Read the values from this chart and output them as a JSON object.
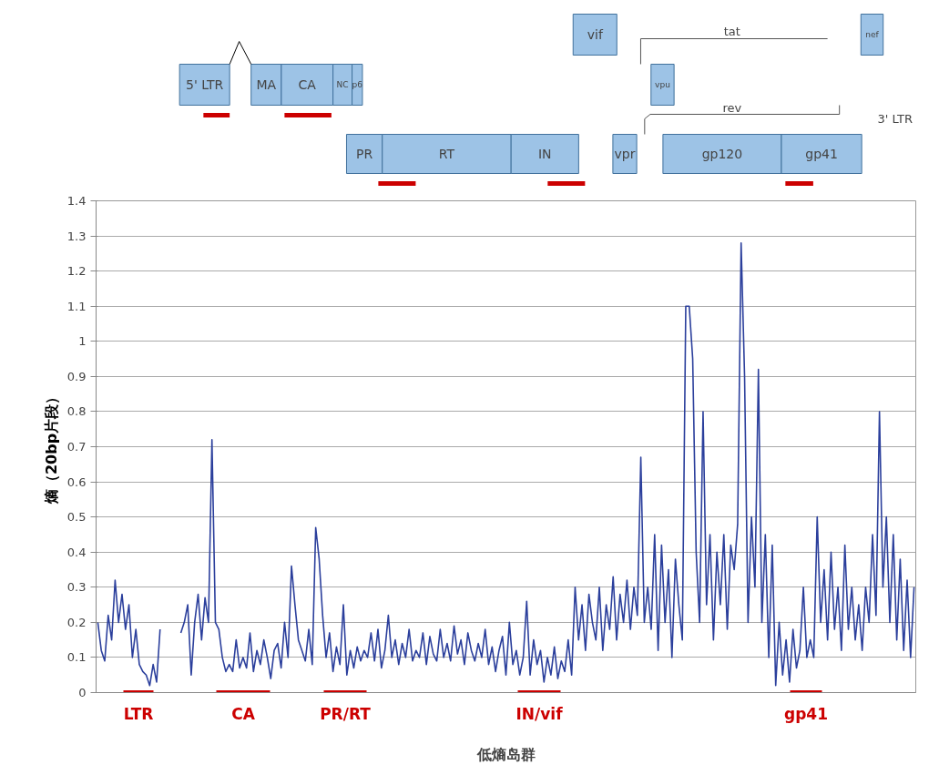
{
  "chart_data": {
    "type": "line",
    "xlabel": "低熵岛群",
    "ylabel": "熵（20bp片段）",
    "categories": [
      null,
      null,
      null,
      null,
      null,
      null,
      null,
      null,
      null,
      null,
      null,
      null,
      null,
      null,
      null,
      null,
      null,
      null,
      null,
      null,
      null,
      null,
      null,
      null,
      null,
      null,
      null,
      null,
      null,
      null,
      null,
      null,
      null,
      null,
      null,
      null,
      null,
      null,
      null,
      null,
      null,
      null,
      null,
      null,
      null,
      null,
      null,
      null,
      null,
      null,
      null,
      null,
      null,
      null,
      null,
      null,
      null,
      null,
      null,
      null,
      null,
      null,
      null,
      null,
      null,
      null,
      null,
      null,
      null,
      null,
      null,
      null,
      null,
      null,
      null,
      null,
      null,
      null,
      null,
      null,
      null,
      null,
      null,
      null,
      null,
      null,
      null,
      null,
      null,
      null,
      null,
      null,
      null,
      null,
      null,
      null,
      null,
      null,
      null,
      null,
      null,
      null,
      null,
      null,
      null,
      null,
      null,
      null,
      null,
      null,
      null,
      null,
      null,
      null,
      null,
      null,
      null,
      null,
      null,
      null,
      null,
      null,
      null,
      null,
      null,
      null,
      null,
      null,
      null,
      null,
      null,
      null,
      null,
      null,
      null,
      null,
      null,
      null,
      null,
      null,
      null,
      null,
      null,
      null,
      null,
      null,
      null,
      null,
      null,
      null,
      null,
      null,
      null,
      null,
      null,
      null,
      null,
      null,
      null,
      null,
      null,
      null,
      null,
      null,
      null,
      null,
      null,
      null,
      null,
      null,
      null,
      null,
      null,
      null,
      null,
      null,
      null,
      null,
      null,
      null,
      null,
      null,
      null,
      null,
      null,
      null,
      null,
      null,
      null,
      null,
      null,
      null,
      null,
      null,
      null,
      null,
      null,
      null,
      null,
      null,
      null,
      null,
      null,
      null,
      null,
      null,
      null,
      null,
      null,
      null,
      null,
      null,
      null,
      null,
      null,
      null,
      null,
      null,
      null,
      null,
      null,
      null,
      null,
      null,
      null,
      null,
      null,
      null,
      null,
      null,
      null,
      null,
      null,
      null,
      null,
      null,
      null
    ],
    "series": [
      {
        "color": "#2b3f9c",
        "values": [
          0.2,
          0.12,
          0.09,
          0.22,
          0.15,
          0.32,
          0.2,
          0.28,
          0.18,
          0.25,
          0.1,
          0.18,
          0.08,
          0.06,
          0.05,
          0.02,
          0.08,
          0.03,
          0.18,
          null,
          null,
          null,
          null,
          null,
          null,
          null,
          null,
          null,
          null,
          null,
          null,
          null,
          null,
          null,
          null,
          null,
          null,
          null,
          null,
          null,
          null,
          null,
          null,
          null,
          null,
          null,
          null,
          null,
          null,
          null,
          null,
          null,
          null,
          null,
          null,
          null,
          null,
          null,
          null,
          null,
          null,
          null,
          null,
          null,
          null,
          null,
          null,
          null,
          null,
          null,
          null,
          null,
          null,
          null,
          null,
          null,
          null,
          null,
          null,
          null,
          null,
          null,
          null,
          null,
          null,
          null,
          null,
          null,
          null,
          null,
          null,
          null,
          null,
          null,
          null,
          null,
          null,
          null,
          null,
          null,
          null,
          null,
          null,
          null,
          null,
          null,
          null,
          null,
          null,
          null,
          null,
          null,
          null,
          null,
          null,
          null,
          null,
          null,
          null,
          null,
          null,
          null,
          null,
          null,
          null,
          null,
          null,
          null,
          null,
          null,
          null,
          null,
          null,
          null,
          null,
          null,
          null,
          null,
          null,
          null,
          null,
          null,
          null,
          null,
          null,
          null,
          null,
          null,
          null,
          null,
          null,
          null,
          null,
          null,
          null,
          null,
          null,
          null,
          null,
          null,
          null,
          null,
          null,
          null,
          null,
          null,
          null,
          null,
          null,
          null,
          null,
          null,
          null,
          null,
          null,
          null,
          null,
          null,
          null,
          null,
          null,
          null,
          null,
          null,
          null,
          null,
          null,
          null,
          null,
          null,
          null,
          null,
          null,
          null,
          null,
          null,
          null,
          null,
          null,
          null,
          null,
          null,
          null,
          null,
          null,
          null,
          null,
          null,
          null,
          null,
          null,
          null,
          null,
          null,
          null,
          null,
          null,
          null,
          null,
          null,
          null,
          null,
          null,
          null,
          null,
          null,
          null,
          null,
          null,
          null,
          null,
          null,
          null,
          null,
          null,
          null,
          null
        ]
      },
      {
        "color": "#2b3f9c",
        "values": [
          null,
          null,
          null,
          null,
          null,
          null,
          null,
          null,
          null,
          null,
          null,
          null,
          null,
          null,
          null,
          null,
          null,
          null,
          null,
          null,
          null,
          null,
          null,
          null,
          0.17,
          0.2,
          0.25,
          0.05,
          0.2,
          0.28,
          0.15,
          0.27,
          0.2,
          0.72,
          0.2,
          0.18,
          0.1,
          0.06,
          0.08,
          0.06,
          0.15,
          0.07,
          0.1,
          0.07,
          0.17,
          0.06,
          0.12,
          0.08,
          0.15,
          0.1,
          0.04,
          0.12,
          0.14,
          0.07,
          0.2,
          0.1,
          0.36,
          0.25,
          0.15,
          0.12,
          0.09,
          0.18,
          0.08,
          0.47,
          0.38,
          0.22,
          0.1,
          0.17,
          0.06,
          0.13,
          0.08,
          0.25,
          0.05,
          0.12,
          0.07,
          0.13,
          0.09,
          0.12,
          0.1,
          0.17,
          0.09,
          0.18,
          0.07,
          0.12,
          0.22,
          0.1,
          0.15,
          0.08,
          0.14,
          0.1,
          0.18,
          0.09,
          0.12,
          0.1,
          0.17,
          0.08,
          0.16,
          0.11,
          0.09,
          0.18,
          0.1,
          0.14,
          0.09,
          0.19,
          0.11,
          0.15,
          0.08,
          0.17,
          0.12,
          0.09,
          0.14,
          0.1,
          0.18,
          0.08,
          0.13,
          0.06,
          0.12,
          0.16,
          0.05,
          0.2,
          0.08,
          0.12,
          0.05,
          0.1,
          0.26,
          0.05,
          0.15,
          0.08,
          0.12,
          0.03,
          0.1,
          0.05,
          0.13,
          0.04,
          0.09,
          0.06,
          0.15,
          0.05,
          0.3,
          0.15,
          0.25,
          0.12,
          0.28,
          0.2,
          0.15,
          0.3,
          0.12,
          0.25,
          0.18,
          0.33,
          0.15,
          0.28,
          0.2,
          0.32,
          0.18,
          0.3,
          0.22,
          0.67,
          0.2,
          0.3,
          0.18,
          0.45,
          0.12,
          0.42,
          0.2,
          0.35,
          0.1,
          0.38,
          0.25,
          0.15,
          1.1,
          1.1,
          0.95,
          0.4,
          0.2,
          0.8,
          0.25,
          0.45,
          0.15,
          0.4,
          0.25,
          0.45,
          0.18,
          0.42,
          0.35,
          0.48,
          1.28,
          0.9,
          0.2,
          0.5,
          0.3,
          0.92,
          0.2,
          0.45,
          0.1,
          0.42,
          0.02,
          0.2,
          0.05,
          0.15,
          0.03,
          0.18,
          0.07,
          0.12,
          0.3,
          0.1,
          0.15,
          0.1,
          0.5,
          0.2,
          0.35,
          0.15,
          0.4,
          0.18,
          0.3,
          0.12,
          0.42,
          0.18,
          0.3,
          0.15,
          0.25,
          0.12,
          0.3,
          0.2,
          0.45,
          0.22,
          0.8,
          0.3,
          0.5,
          0.2,
          0.45,
          0.15,
          0.38,
          0.12,
          0.32,
          0.1,
          0.3
        ]
      }
    ],
    "ylim": [
      0,
      1.4
    ],
    "yticks": [
      0,
      0.1,
      0.2,
      0.3,
      0.4,
      0.5,
      0.6,
      0.7,
      0.8,
      0.9,
      1,
      1.1,
      1.2,
      1.3,
      1.4
    ],
    "grid": "y",
    "tick_labels": "y",
    "marker": "none",
    "line_style": "solid",
    "annotations": [
      "LTR",
      "CA",
      "PR/RT",
      "IN/vif",
      "gp41",
      "5' LTR",
      "MA",
      "CA",
      "NC",
      "p6",
      "PR",
      "RT",
      "IN",
      "vif",
      "tat",
      "vpu",
      "rev",
      "vpr",
      "gp120",
      "gp41",
      "nef",
      "3' LTR"
    ]
  }
}
